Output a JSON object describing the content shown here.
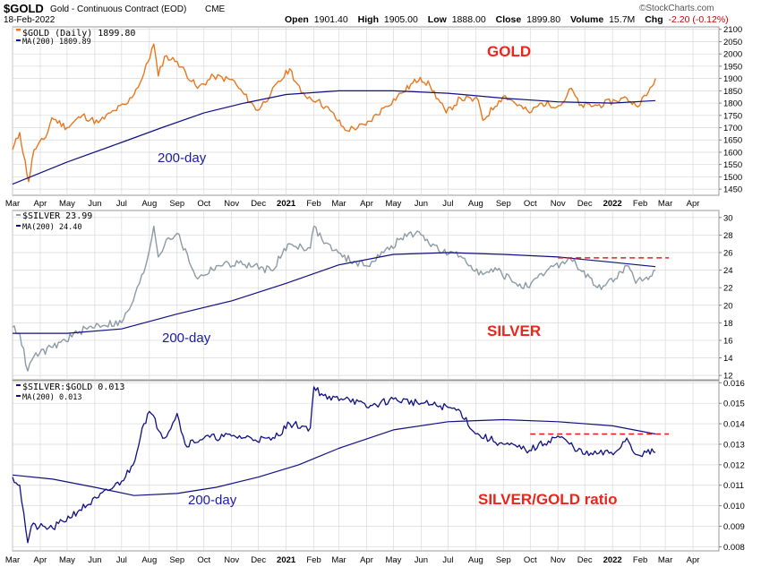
{
  "header": {
    "symbol": "$GOLD",
    "description": "Gold - Continuous Contract (EOD)",
    "exchange": "CME",
    "date": "18-Feb-2022",
    "brand": "©StockCharts.com",
    "open_label": "Open",
    "open_value": "1901.40",
    "high_label": "High",
    "high_value": "1905.00",
    "low_label": "Low",
    "low_value": "1888.00",
    "close_label": "Close",
    "close_value": "1899.80",
    "volume_label": "Volume",
    "volume_value": "15.7M",
    "chg_label": "Chg",
    "chg_value": "-2.20 (-0.12%)"
  },
  "colors": {
    "gold": "#e8781e",
    "silver": "#8c9aa5",
    "ratio": "#101080",
    "ma": "#101080",
    "annotation_red": "#e8261e",
    "annotation_blue": "#1a1aa6",
    "grid": "#d8d8d8",
    "resistance_line": "#dd2222"
  },
  "chart_data": [
    {
      "type": "line",
      "title": "GOLD",
      "legend_series": "$GOLD (Daily) 1899.80",
      "legend_ma": "MA(200) 1809.89",
      "annotation": "200-day",
      "ylim": [
        1425,
        2110
      ],
      "yticks": [
        1450,
        1500,
        1550,
        1600,
        1650,
        1700,
        1750,
        1800,
        1850,
        1900,
        1950,
        2000,
        2050,
        2100
      ],
      "grid": true,
      "series": [
        {
          "name": "$GOLD (Daily)",
          "x": [
            "2020-03-01",
            "2020-03-09",
            "2020-03-19",
            "2020-03-25",
            "2020-04-07",
            "2020-04-14",
            "2020-05-01",
            "2020-05-18",
            "2020-06-05",
            "2020-06-23",
            "2020-07-08",
            "2020-07-24",
            "2020-08-06",
            "2020-08-11",
            "2020-08-18",
            "2020-09-01",
            "2020-09-24",
            "2020-10-12",
            "2020-11-04",
            "2020-11-09",
            "2020-11-30",
            "2020-12-15",
            "2021-01-05",
            "2021-01-18",
            "2021-02-05",
            "2021-02-19",
            "2021-03-08",
            "2021-03-31",
            "2021-04-20",
            "2021-05-10",
            "2021-05-31",
            "2021-06-11",
            "2021-06-29",
            "2021-07-15",
            "2021-08-04",
            "2021-08-09",
            "2021-08-27",
            "2021-09-03",
            "2021-09-30",
            "2021-10-14",
            "2021-11-04",
            "2021-11-16",
            "2021-11-25",
            "2021-12-15",
            "2022-01-04",
            "2022-01-17",
            "2022-01-27",
            "2022-02-08",
            "2022-02-18"
          ],
          "values": [
            1610,
            1680,
            1480,
            1610,
            1660,
            1740,
            1700,
            1750,
            1720,
            1770,
            1800,
            1900,
            2040,
            1910,
            1990,
            1970,
            1860,
            1910,
            1890,
            1860,
            1770,
            1840,
            1940,
            1840,
            1810,
            1770,
            1690,
            1710,
            1780,
            1840,
            1905,
            1870,
            1760,
            1820,
            1810,
            1730,
            1810,
            1830,
            1760,
            1800,
            1790,
            1860,
            1790,
            1790,
            1810,
            1820,
            1790,
            1830,
            1900
          ]
        },
        {
          "name": "MA(200)",
          "x": [
            "2020-03-01",
            "2020-05-01",
            "2020-07-01",
            "2020-08-15",
            "2020-10-01",
            "2020-11-15",
            "2021-01-01",
            "2021-03-01",
            "2021-05-01",
            "2021-07-01",
            "2021-09-01",
            "2021-11-01",
            "2022-01-01",
            "2022-02-18"
          ],
          "values": [
            1470,
            1560,
            1640,
            1700,
            1760,
            1800,
            1835,
            1850,
            1850,
            1840,
            1820,
            1805,
            1800,
            1810
          ]
        }
      ]
    },
    {
      "type": "line",
      "title": "SILVER",
      "legend_series": "$SILVER 23.99",
      "legend_ma": "MA(200) 24.40",
      "annotation": "200-day",
      "ylim": [
        11.5,
        30.8
      ],
      "yticks": [
        12,
        14,
        16,
        18,
        20,
        22,
        24,
        26,
        28,
        30
      ],
      "grid": true,
      "series": [
        {
          "name": "$SILVER",
          "x": [
            "2020-03-01",
            "2020-03-09",
            "2020-03-18",
            "2020-03-25",
            "2020-04-15",
            "2020-05-15",
            "2020-06-05",
            "2020-07-01",
            "2020-07-14",
            "2020-07-28",
            "2020-08-06",
            "2020-08-11",
            "2020-08-20",
            "2020-09-01",
            "2020-09-24",
            "2020-10-15",
            "2020-11-09",
            "2020-12-15",
            "2021-01-05",
            "2021-01-28",
            "2021-02-01",
            "2021-02-10",
            "2021-03-05",
            "2021-03-31",
            "2021-04-20",
            "2021-05-18",
            "2021-06-01",
            "2021-06-25",
            "2021-07-15",
            "2021-08-09",
            "2021-08-25",
            "2021-09-15",
            "2021-09-30",
            "2021-10-20",
            "2021-11-15",
            "2021-12-15",
            "2022-01-04",
            "2022-01-17",
            "2022-01-27",
            "2022-02-08",
            "2022-02-18"
          ],
          "values": [
            17.5,
            16.8,
            12.5,
            14.2,
            15.2,
            17.0,
            17.8,
            18.0,
            20.5,
            24.5,
            29.0,
            25.5,
            27.5,
            28.2,
            23.0,
            24.5,
            24.8,
            24.0,
            27.0,
            26.5,
            29.0,
            27.5,
            25.5,
            24.5,
            26.0,
            28.2,
            28.0,
            26.0,
            25.6,
            23.5,
            24.0,
            22.5,
            22.0,
            24.0,
            25.3,
            22.0,
            23.0,
            24.5,
            22.5,
            23.2,
            24.0
          ]
        },
        {
          "name": "MA(200)",
          "x": [
            "2020-03-01",
            "2020-05-01",
            "2020-07-01",
            "2020-09-01",
            "2020-11-01",
            "2021-01-01",
            "2021-03-01",
            "2021-05-01",
            "2021-07-01",
            "2021-09-01",
            "2021-11-01",
            "2022-01-01",
            "2022-02-18"
          ],
          "values": [
            16.8,
            16.8,
            17.3,
            19.0,
            20.5,
            22.5,
            24.6,
            25.8,
            26.0,
            25.8,
            25.5,
            24.9,
            24.4
          ]
        }
      ],
      "resistance": {
        "from": "2021-11-01",
        "to": "2022-03-05",
        "value": 25.4
      }
    },
    {
      "type": "line",
      "title": "SILVER/GOLD ratio",
      "legend_series": "$SILVER:$GOLD 0.013",
      "legend_ma": "MA(200) 0.013",
      "annotation": "200-day",
      "ylim": [
        0.0078,
        0.0161
      ],
      "yticks": [
        0.008,
        0.009,
        0.01,
        0.011,
        0.012,
        0.013,
        0.014,
        0.015,
        0.016
      ],
      "grid": true,
      "series": [
        {
          "name": "$SILVER:$GOLD",
          "x": [
            "2020-03-01",
            "2020-03-09",
            "2020-03-18",
            "2020-03-22",
            "2020-04-15",
            "2020-05-15",
            "2020-06-05",
            "2020-07-01",
            "2020-07-14",
            "2020-07-24",
            "2020-08-01",
            "2020-08-18",
            "2020-09-01",
            "2020-09-10",
            "2020-10-01",
            "2020-11-01",
            "2020-12-15",
            "2021-01-05",
            "2021-01-28",
            "2021-02-01",
            "2021-02-16",
            "2021-03-10",
            "2021-04-01",
            "2021-05-01",
            "2021-06-01",
            "2021-07-01",
            "2021-07-15",
            "2021-08-01",
            "2021-09-01",
            "2021-09-30",
            "2021-11-01",
            "2021-12-01",
            "2022-01-04",
            "2022-01-17",
            "2022-01-27",
            "2022-02-08",
            "2022-02-18"
          ],
          "values": [
            0.0114,
            0.011,
            0.0082,
            0.009,
            0.0089,
            0.0098,
            0.0104,
            0.0112,
            0.012,
            0.0138,
            0.0146,
            0.0133,
            0.0145,
            0.013,
            0.0133,
            0.0134,
            0.0132,
            0.014,
            0.0138,
            0.0158,
            0.0152,
            0.0153,
            0.0148,
            0.0152,
            0.015,
            0.0148,
            0.0146,
            0.0135,
            0.013,
            0.0127,
            0.0134,
            0.0125,
            0.0126,
            0.0133,
            0.0125,
            0.0126,
            0.0126
          ]
        },
        {
          "name": "MA(200)",
          "x": [
            "2020-03-01",
            "2020-04-15",
            "2020-06-01",
            "2020-07-15",
            "2020-09-01",
            "2020-10-15",
            "2020-12-01",
            "2021-01-15",
            "2021-03-01",
            "2021-05-01",
            "2021-07-01",
            "2021-09-01",
            "2021-11-01",
            "2022-01-01",
            "2022-02-18"
          ],
          "values": [
            0.0115,
            0.0113,
            0.0109,
            0.0105,
            0.0106,
            0.0109,
            0.0114,
            0.012,
            0.0128,
            0.0137,
            0.0141,
            0.0142,
            0.0141,
            0.0139,
            0.0135
          ]
        }
      ],
      "resistance": {
        "from": "2021-10-01",
        "to": "2022-03-05",
        "value": 0.0135
      }
    }
  ],
  "xaxis": {
    "start": "2020-03-01",
    "end": "2022-04-30",
    "labels": [
      {
        "text": "Mar",
        "date": "2020-03-01"
      },
      {
        "text": "Apr",
        "date": "2020-04-01"
      },
      {
        "text": "May",
        "date": "2020-05-01"
      },
      {
        "text": "Jun",
        "date": "2020-06-01"
      },
      {
        "text": "Jul",
        "date": "2020-07-01"
      },
      {
        "text": "Aug",
        "date": "2020-08-01"
      },
      {
        "text": "Sep",
        "date": "2020-09-01"
      },
      {
        "text": "Oct",
        "date": "2020-10-01"
      },
      {
        "text": "Nov",
        "date": "2020-11-01"
      },
      {
        "text": "Dec",
        "date": "2020-12-01"
      },
      {
        "text": "2021",
        "date": "2021-01-01",
        "bold": true
      },
      {
        "text": "Feb",
        "date": "2021-02-01"
      },
      {
        "text": "Mar",
        "date": "2021-03-01"
      },
      {
        "text": "Apr",
        "date": "2021-04-01"
      },
      {
        "text": "May",
        "date": "2021-05-01"
      },
      {
        "text": "Jun",
        "date": "2021-06-01"
      },
      {
        "text": "Jul",
        "date": "2021-07-01"
      },
      {
        "text": "Aug",
        "date": "2021-08-01"
      },
      {
        "text": "Sep",
        "date": "2021-09-01"
      },
      {
        "text": "Oct",
        "date": "2021-10-01"
      },
      {
        "text": "Nov",
        "date": "2021-11-01"
      },
      {
        "text": "Dec",
        "date": "2021-12-01"
      },
      {
        "text": "2022",
        "date": "2022-01-01",
        "bold": true
      },
      {
        "text": "Feb",
        "date": "2022-02-01"
      },
      {
        "text": "Mar",
        "date": "2022-03-01"
      },
      {
        "text": "Apr",
        "date": "2022-04-01"
      }
    ]
  }
}
